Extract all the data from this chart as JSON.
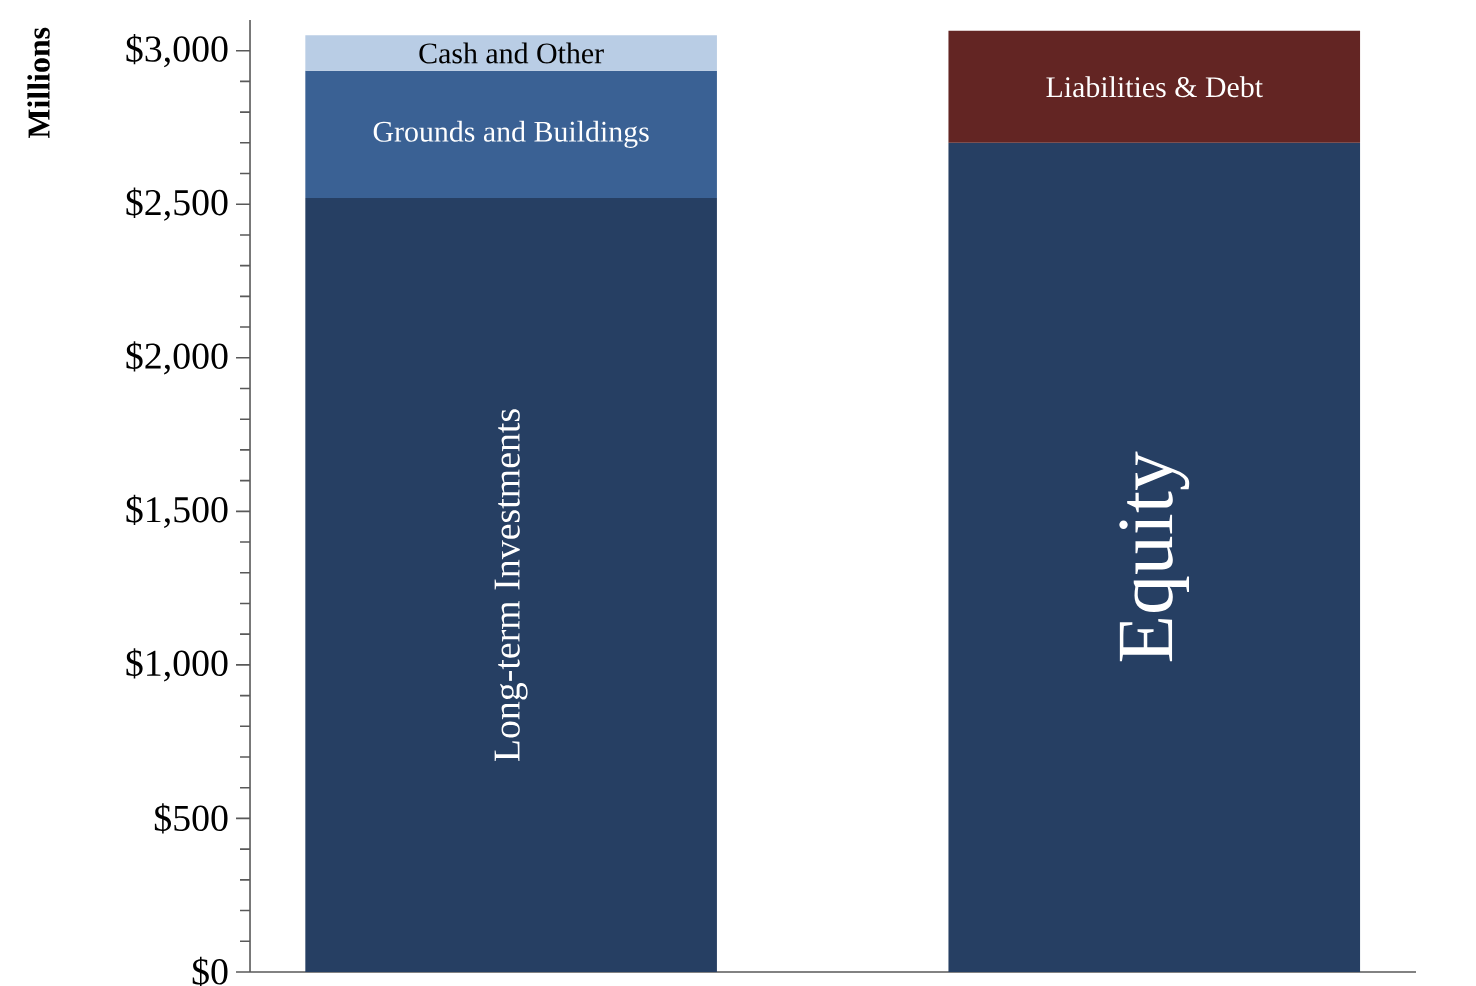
{
  "chart_data": {
    "type": "bar",
    "stacked": true,
    "ylabel": "Millions",
    "categories": [
      null,
      null
    ],
    "series": [
      {
        "name": "Long-term Investments",
        "color": "#263f63",
        "values": [
          2520,
          null
        ]
      },
      {
        "name": "Grounds and Buildings",
        "color": "#3a6194",
        "values": [
          415,
          null
        ]
      },
      {
        "name": "Cash and Other",
        "color": "#b9cde5",
        "values": [
          115,
          null
        ]
      },
      {
        "name": "Equity",
        "color": "#263f63",
        "values": [
          null,
          2700
        ]
      },
      {
        "name": "Liabilities & Debt",
        "color": "#632523",
        "values": [
          null,
          365
        ]
      }
    ],
    "ylim": [
      0,
      3100
    ],
    "yticks": [
      {
        "value": 0,
        "label": "$0"
      },
      {
        "value": 500,
        "label": "$500"
      },
      {
        "value": 1000,
        "label": "$1,000"
      },
      {
        "value": 1500,
        "label": "$1,500"
      },
      {
        "value": 2000,
        "label": "$2,000"
      },
      {
        "value": 2500,
        "label": "$2,500"
      },
      {
        "value": 3000,
        "label": "$3,000"
      }
    ],
    "tick_labels": "y"
  }
}
